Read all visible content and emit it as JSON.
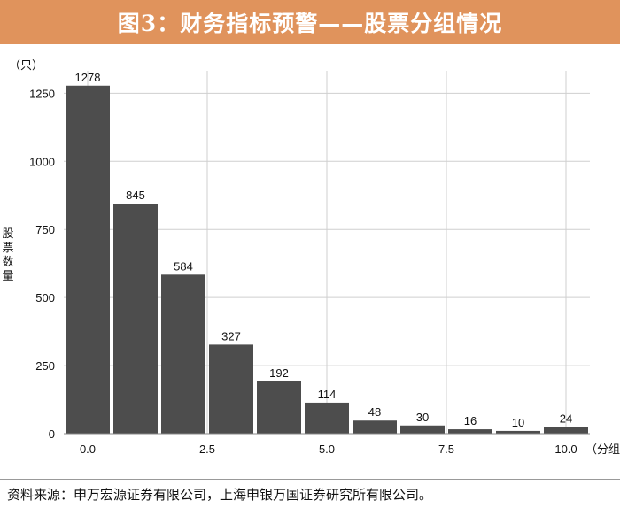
{
  "header": {
    "title": "图3：财务指标预警——股票分组情况"
  },
  "footer": {
    "source": "资料来源：申万宏源证券有限公司，上海申银万国证券研究所有限公司。"
  },
  "colors": {
    "header_bg": "#e0935c",
    "bar": "#4d4d4d",
    "grid": "#cfcfcf"
  },
  "chart_data": {
    "type": "bar",
    "title": "图3：财务指标预警——股票分组情况",
    "ylabel": "股票数量",
    "yunit": "（只）",
    "xunit": "（分组）",
    "ylim": [
      0,
      1300
    ],
    "yticks": [
      0,
      250,
      500,
      750,
      1000,
      1250
    ],
    "xticks": [
      "0.0",
      "2.5",
      "5.0",
      "7.5",
      "10.0"
    ],
    "xtick_positions": [
      0,
      2.5,
      5.0,
      7.5,
      10.0
    ],
    "bin_width": 1.0,
    "categories": [
      0,
      1,
      2,
      3,
      4,
      5,
      6,
      7,
      8,
      9,
      10
    ],
    "values": [
      1278,
      845,
      584,
      327,
      192,
      114,
      48,
      30,
      16,
      10,
      24
    ],
    "grid": true,
    "legend": "none"
  }
}
